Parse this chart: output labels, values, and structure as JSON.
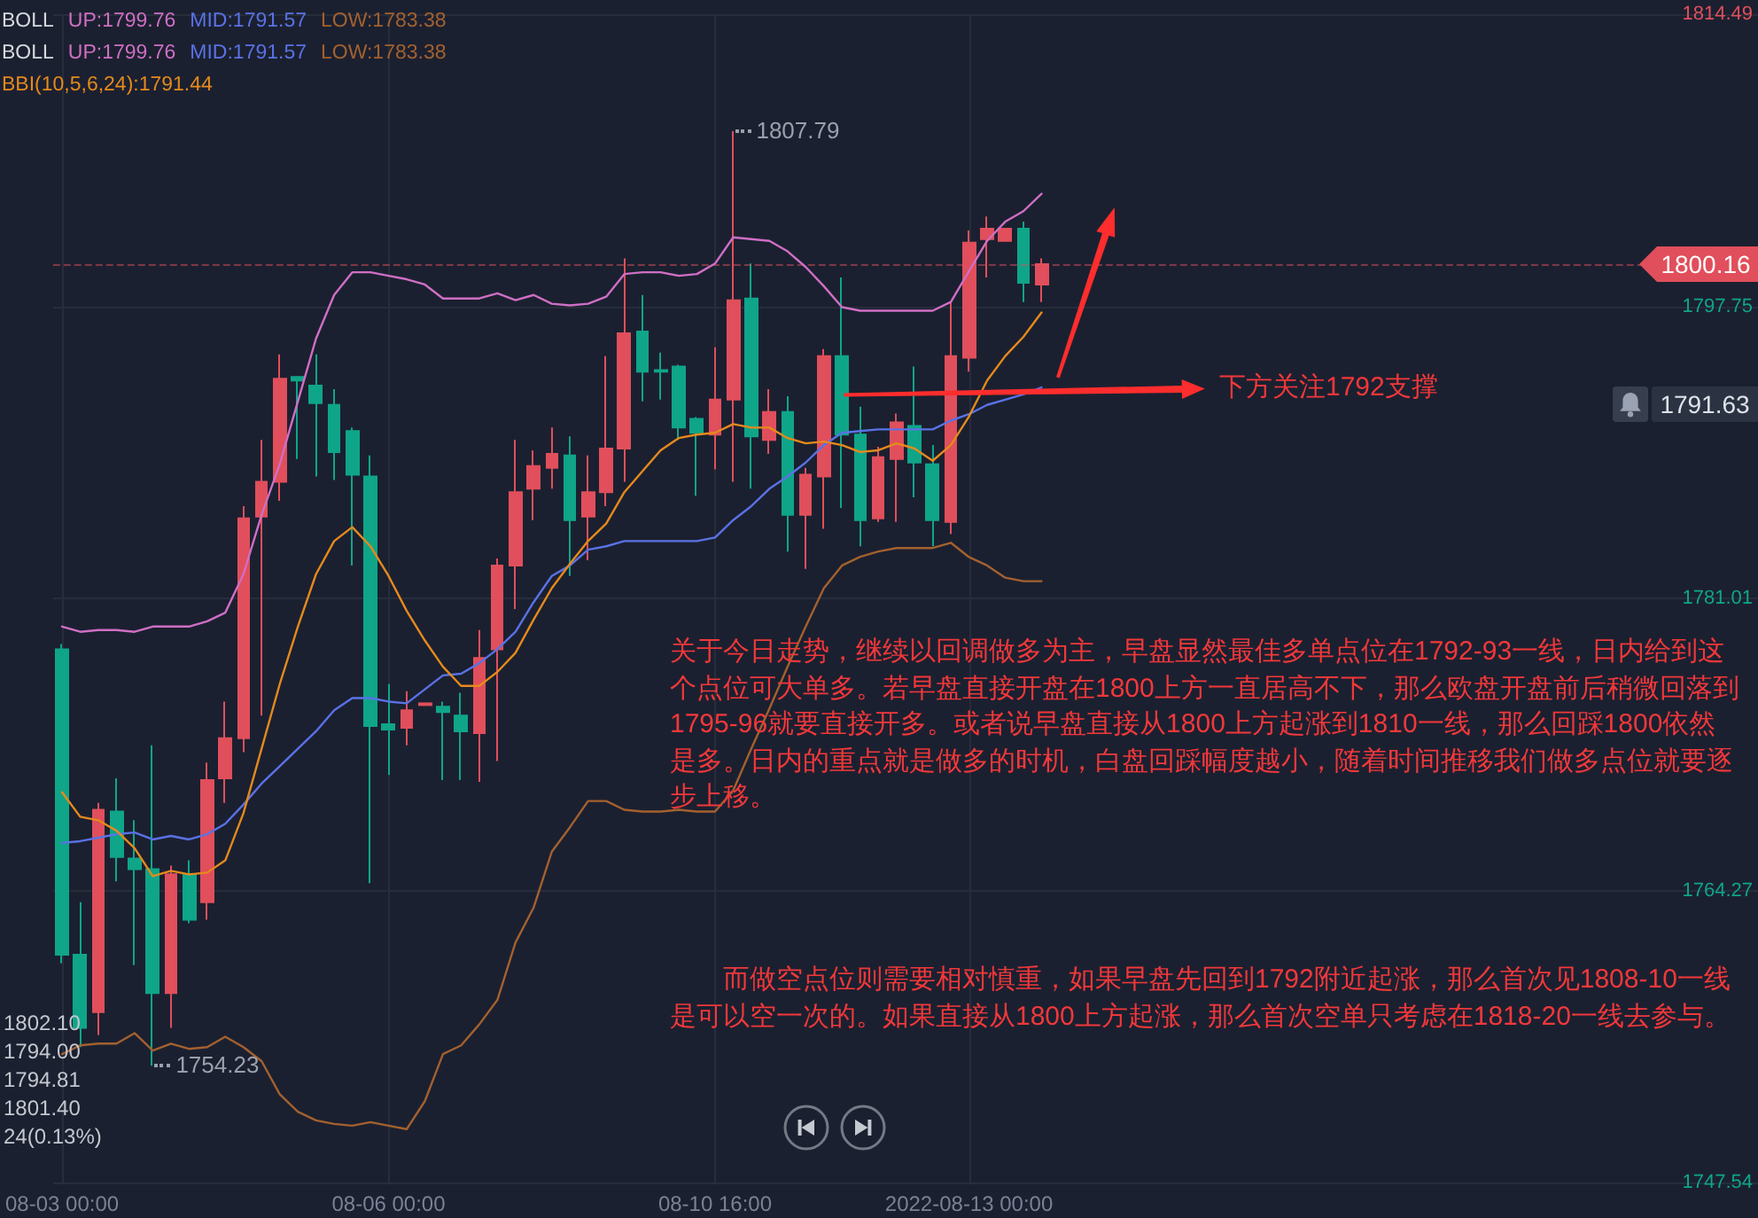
{
  "chart_data": {
    "type": "candlestick",
    "categories": [
      "08-03 00:00",
      null,
      null,
      null,
      null,
      null,
      null,
      null,
      null,
      null,
      null,
      null,
      null,
      null,
      null,
      null,
      null,
      null,
      "08-06 00:00",
      null,
      null,
      null,
      null,
      null,
      null,
      null,
      null,
      null,
      null,
      null,
      null,
      null,
      null,
      null,
      null,
      null,
      "08-10 16:00",
      null,
      null,
      null,
      null,
      null,
      null,
      null,
      null,
      null,
      null,
      null,
      null,
      null,
      "2022-08-13 00:00",
      null,
      null,
      null,
      null
    ],
    "ohlc": [
      [
        1778.1,
        1778.4,
        1760.1,
        1760.6
      ],
      [
        1760.6,
        1763.6,
        1755.3,
        1756.4
      ],
      [
        1757.3,
        1769.3,
        1756.0,
        1768.9
      ],
      [
        1768.8,
        1770.7,
        1764.8,
        1766.2
      ],
      [
        1766.1,
        1768.3,
        1760.0,
        1765.5
      ],
      [
        1765.5,
        1772.6,
        1754.23,
        1758.4
      ],
      [
        1758.4,
        1765.7,
        1756.4,
        1765.2
      ],
      [
        1765.2,
        1766.0,
        1762.4,
        1762.6
      ],
      [
        1763.6,
        1771.6,
        1762.6,
        1770.6
      ],
      [
        1770.7,
        1775.1,
        1769.3,
        1773.0
      ],
      [
        1773.0,
        1786.3,
        1772.2,
        1785.6
      ],
      [
        1785.7,
        1790.1,
        1774.3,
        1787.7
      ],
      [
        1787.7,
        1795.0,
        1786.6,
        1793.6
      ],
      [
        1793.7,
        1793.7,
        1789.0,
        1793.5
      ],
      [
        1793.2,
        1795.0,
        1788.0,
        1792.2
      ],
      [
        1792.1,
        1793.0,
        1787.8,
        1789.4
      ],
      [
        1790.6,
        1790.8,
        1782.9,
        1788.1
      ],
      [
        1788.0,
        1789.2,
        1764.7,
        1773.7
      ],
      [
        1773.8,
        1776.1,
        1770.9,
        1773.5
      ],
      [
        1773.6,
        1775.7,
        1772.6,
        1774.6
      ],
      [
        1774.9,
        1775.0,
        1774.9,
        1775.0
      ],
      [
        1774.8,
        1775.1,
        1770.6,
        1774.5
      ],
      [
        1774.3,
        1775.6,
        1770.6,
        1773.4
      ],
      [
        1773.3,
        1779.2,
        1770.5,
        1777.6
      ],
      [
        1778.1,
        1783.3,
        1771.7,
        1782.9
      ],
      [
        1782.9,
        1790.1,
        1780.4,
        1787.1
      ],
      [
        1787.3,
        1789.5,
        1785.5,
        1788.6
      ],
      [
        1788.5,
        1790.8,
        1787.3,
        1789.3
      ],
      [
        1789.2,
        1790.3,
        1782.3,
        1785.5
      ],
      [
        1785.7,
        1789.2,
        1783.2,
        1787.1
      ],
      [
        1787.1,
        1794.9,
        1786.3,
        1789.6
      ],
      [
        1789.6,
        1800.5,
        1787.7,
        1796.2
      ],
      [
        1796.3,
        1798.4,
        1792.3,
        1794.0
      ],
      [
        1794.1,
        1795.1,
        1792.4,
        1794.0
      ],
      [
        1794.3,
        1794.4,
        1790.1,
        1790.8
      ],
      [
        1791.3,
        1791.4,
        1786.9,
        1790.5
      ],
      [
        1790.4,
        1795.4,
        1788.4,
        1792.4
      ],
      [
        1792.4,
        1807.79,
        1787.7,
        1798.1
      ],
      [
        1798.2,
        1800.2,
        1787.3,
        1790.3
      ],
      [
        1790.1,
        1793.0,
        1789.3,
        1791.7
      ],
      [
        1791.7,
        1792.6,
        1783.7,
        1785.8
      ],
      [
        1785.8,
        1788.5,
        1782.7,
        1788.1
      ],
      [
        1788.0,
        1795.3,
        1785.0,
        1794.9
      ],
      [
        1794.9,
        1799.4,
        1786.2,
        1790.4
      ],
      [
        1790.4,
        1792.0,
        1784.0,
        1785.5
      ],
      [
        1785.6,
        1789.7,
        1785.4,
        1789.1
      ],
      [
        1789.0,
        1791.6,
        1785.4,
        1791.1
      ],
      [
        1790.9,
        1794.3,
        1786.8,
        1788.8
      ],
      [
        1788.7,
        1789.8,
        1784.0,
        1785.5
      ],
      [
        1785.4,
        1798.0,
        1784.7,
        1794.9
      ],
      [
        1794.81,
        1802.1,
        1794.0,
        1801.4
      ],
      [
        1801.6,
        1802.9,
        1799.4,
        1802.2
      ],
      [
        1801.5,
        1802.2,
        1801.5,
        1802.2
      ],
      [
        1802.2,
        1802.6,
        1798.0,
        1799.1
      ],
      [
        1799.0,
        1800.5,
        1798.0,
        1800.16
      ]
    ],
    "colors": [
      "#0fa589",
      "#0fa589",
      "#e04f5b",
      "#0fa589",
      "#0fa589",
      "#0fa589",
      "#e04f5b",
      "#0fa589",
      "#e04f5b",
      "#e04f5b",
      "#e04f5b",
      "#e04f5b",
      "#e04f5b",
      "#0fa589",
      "#0fa589",
      "#0fa589",
      "#0fa589",
      "#0fa589",
      "#0fa589",
      "#e04f5b",
      "#e04f5b",
      "#0fa589",
      "#0fa589",
      "#e04f5b",
      "#e04f5b",
      "#e04f5b",
      "#e04f5b",
      "#e04f5b",
      "#0fa589",
      "#e04f5b",
      "#e04f5b",
      "#e04f5b",
      "#0fa589",
      "#0fa589",
      "#0fa589",
      "#0fa589",
      "#e04f5b",
      "#e04f5b",
      "#0fa589",
      "#e04f5b",
      "#0fa589",
      "#e04f5b",
      "#e04f5b",
      "#0fa589",
      "#0fa589",
      "#e04f5b",
      "#e04f5b",
      "#0fa589",
      "#0fa589",
      "#e04f5b",
      "#e04f5b",
      "#e04f5b",
      "#e04f5b",
      "#0fa589",
      "#e04f5b"
    ],
    "series": [
      {
        "type": "line",
        "name": "UP:1799.76",
        "color": "#cf6fc4",
        "values": [
          1779.4,
          1779.1,
          1779.2,
          1779.2,
          1779.1,
          1779.4,
          1779.4,
          1779.4,
          1779.7,
          1780.2,
          1782.4,
          1785.8,
          1788.7,
          1792.3,
          1795.9,
          1798.4,
          1799.7,
          1799.7,
          1799.5,
          1799.3,
          1799.0,
          1798.2,
          1798.2,
          1798.2,
          1798.5,
          1798.1,
          1798.4,
          1797.9,
          1797.8,
          1797.9,
          1798.3,
          1799.6,
          1799.7,
          1799.7,
          1799.5,
          1799.6,
          1800.2,
          1801.7,
          1801.6,
          1801.5,
          1800.9,
          1800.0,
          1798.9,
          1797.7,
          1797.5,
          1797.5,
          1797.5,
          1797.5,
          1797.5,
          1798.0,
          1799.76,
          1801.5,
          1802.6,
          1803.2,
          1804.2
        ]
      },
      {
        "type": "line",
        "name": "MID:1791.57",
        "color": "#5a72e6",
        "values": [
          1767.0,
          1767.1,
          1767.3,
          1767.5,
          1767.6,
          1767.2,
          1767.4,
          1767.2,
          1767.5,
          1768.1,
          1769.2,
          1770.4,
          1771.4,
          1772.4,
          1773.4,
          1774.6,
          1775.3,
          1775.3,
          1775.1,
          1775.0,
          1775.8,
          1776.6,
          1776.7,
          1777.3,
          1778.1,
          1779.1,
          1780.8,
          1782.3,
          1782.9,
          1783.8,
          1784.0,
          1784.3,
          1784.3,
          1784.3,
          1784.3,
          1784.3,
          1784.5,
          1785.5,
          1786.3,
          1787.3,
          1788.0,
          1788.8,
          1789.8,
          1790.5,
          1790.6,
          1790.7,
          1790.7,
          1790.7,
          1790.7,
          1791.2,
          1791.57,
          1792.1,
          1792.4,
          1792.7,
          1793.1
        ]
      },
      {
        "type": "line",
        "name": "LOW:1783.38",
        "color": "#a3612f",
        "values": [
          1754.9,
          1755.4,
          1755.5,
          1755.5,
          1756.1,
          1755.1,
          1755.5,
          1755.2,
          1755.3,
          1755.9,
          1755.3,
          1754.5,
          1752.6,
          1751.6,
          1751.1,
          1750.9,
          1750.8,
          1751.0,
          1750.8,
          1750.6,
          1752.2,
          1754.9,
          1755.4,
          1756.6,
          1758.0,
          1761.3,
          1763.3,
          1766.5,
          1767.9,
          1769.4,
          1769.4,
          1768.9,
          1768.8,
          1768.8,
          1768.9,
          1768.8,
          1768.8,
          1770.0,
          1772.4,
          1774.7,
          1777.1,
          1779.4,
          1781.6,
          1782.9,
          1783.4,
          1783.7,
          1783.9,
          1783.9,
          1783.9,
          1784.2,
          1783.38,
          1782.9,
          1782.2,
          1782.0,
          1782.0
        ]
      },
      {
        "type": "line",
        "name": "BBI(10,5,6,24):1791.44",
        "color": "#e58a1c",
        "values": [
          1769.9,
          1768.5,
          1768.3,
          1767.7,
          1766.7,
          1765.1,
          1765.4,
          1765.2,
          1765.3,
          1766.0,
          1768.7,
          1772.4,
          1776.1,
          1779.4,
          1782.4,
          1784.3,
          1785.1,
          1784.0,
          1782.3,
          1780.3,
          1778.6,
          1777.1,
          1776.0,
          1776.0,
          1776.8,
          1777.9,
          1779.8,
          1781.6,
          1783.0,
          1784.3,
          1785.3,
          1787.1,
          1788.3,
          1789.5,
          1790.2,
          1790.4,
          1790.5,
          1791.0,
          1790.8,
          1790.8,
          1790.2,
          1789.9,
          1790.0,
          1789.8,
          1789.4,
          1789.5,
          1789.9,
          1789.6,
          1788.9,
          1789.8,
          1791.44,
          1793.5,
          1794.9,
          1796.0,
          1797.4
        ]
      }
    ],
    "ylim": [
      1747.54,
      1814.49
    ],
    "yticks": [
      1747.54,
      1764.27,
      1781.01,
      1797.75,
      1814.49
    ],
    "grid": true,
    "legend": "top left",
    "legend_title": "BOLL",
    "marker": "none",
    "line_style": "solid",
    "ref_lines": [
      {
        "axis": "y",
        "value": 1800.16,
        "color": "#e04f5b",
        "line_style": "dashed"
      }
    ],
    "annotations": [
      "关于今日走势，继续以回调做多为主，早盘显然最佳多单点位在1792-93一线，日内给到这个点位可大单多。若早盘直接开盘在1800上方一直居高不下，那么欧盘开盘前后稍微回落到1795-96就要直接开多。或者说早盘直接从1800上方起涨到1810一线，那么回踩1800依然是多。日内的重点就是做多的时机，白盘回踩幅度越小，随着时间推移我们做多点位就要逐步上移。",
      "　　而做空点位则需要相对慎重，如果早盘先回到1792附近起涨，那么首次见1808-10一线是可以空一次的。如果直接从1800上方起涨，那么首次空单只考虑在1818-20一线去参与。",
      "1802.10",
      "1794.00",
      "1794.81",
      "1801.40",
      "24(0.13%)",
      "下方关注1792支撑",
      "1807.79",
      "1754.23",
      "1791.63",
      {
        "text": "1800.16",
        "y": 1800.16
      }
    ]
  }
}
